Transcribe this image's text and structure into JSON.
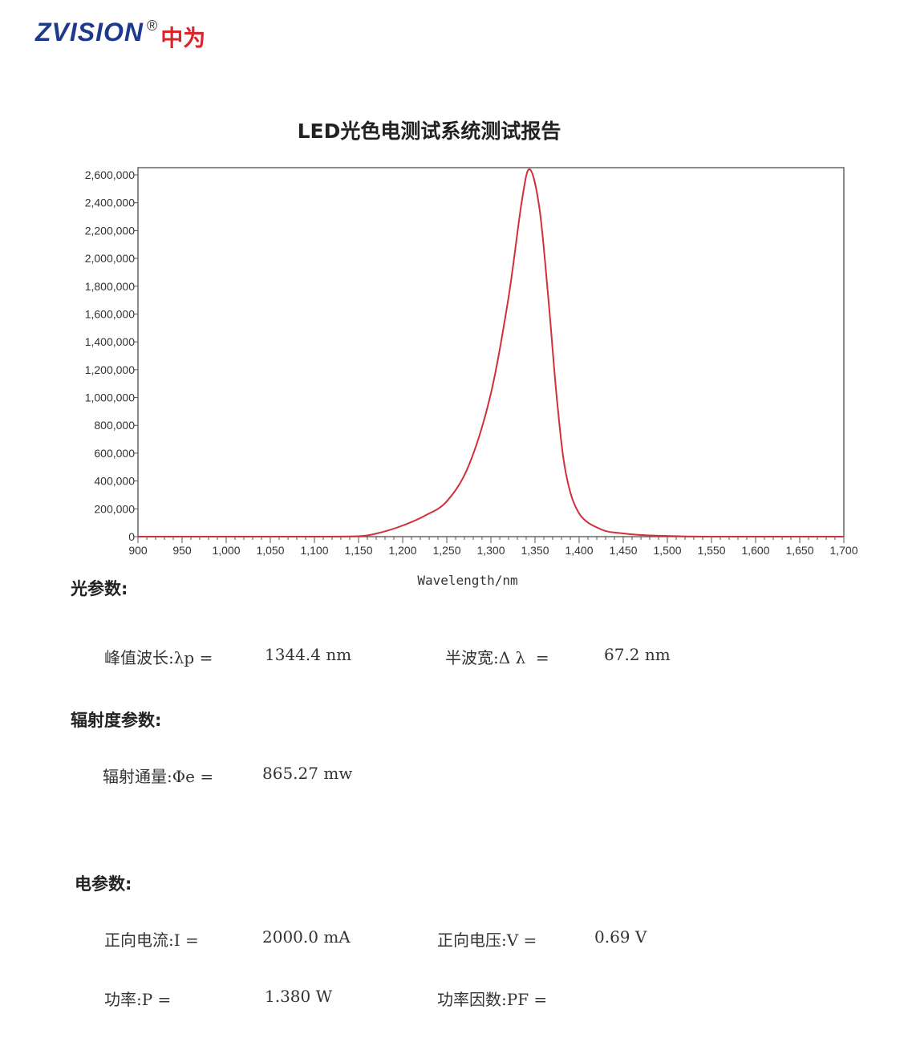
{
  "logo": {
    "en": "ZVISION",
    "reg": "®",
    "cn": "中为"
  },
  "title": "LED光色电测试系统测试报告",
  "chart_data": {
    "type": "line",
    "xlabel": "Wavelength/nm",
    "ylabel": "",
    "xlim": [
      900,
      1700
    ],
    "ylim": [
      0,
      2600000
    ],
    "xticks": [
      900,
      950,
      1000,
      1050,
      1100,
      1150,
      1200,
      1250,
      1300,
      1350,
      1400,
      1450,
      1500,
      1550,
      1600,
      1650,
      1700
    ],
    "xtick_labels": [
      "900",
      "950",
      "1,000",
      "1,050",
      "1,100",
      "1,150",
      "1,200",
      "1,250",
      "1,300",
      "1,350",
      "1,400",
      "1,450",
      "1,500",
      "1,550",
      "1,600",
      "1,650",
      "1,700"
    ],
    "yticks": [
      0,
      200000,
      400000,
      600000,
      800000,
      1000000,
      1200000,
      1400000,
      1600000,
      1800000,
      2000000,
      2200000,
      2400000,
      2600000
    ],
    "ytick_labels": [
      "0",
      "200,000",
      "400,000",
      "600,000",
      "800,000",
      "1,000,000",
      "1,200,000",
      "1,400,000",
      "1,600,000",
      "1,800,000",
      "2,000,000",
      "2,200,000",
      "2,400,000",
      "2,600,000"
    ],
    "grid": false,
    "series": [
      {
        "color": "#d0303a",
        "x": [
          900,
          1100,
          1150,
          1175,
          1200,
          1225,
          1250,
          1275,
          1300,
          1320,
          1335,
          1344,
          1355,
          1365,
          1375,
          1385,
          1400,
          1425,
          1450,
          1475,
          1500,
          1550,
          1700
        ],
        "y": [
          0,
          0,
          3000,
          30000,
          80000,
          150000,
          254000,
          513000,
          1030000,
          1720000,
          2410000,
          2640000,
          2360000,
          1720000,
          975000,
          455000,
          167000,
          52000,
          23000,
          10000,
          5000,
          0,
          0
        ]
      }
    ]
  },
  "sections": {
    "optical": {
      "heading": "光参数:",
      "peak_label": "峰值波长:λp =",
      "peak_value": "1344.4 nm",
      "fwhm_label": "半波宽:Δ λ  =",
      "fwhm_value": "67.2 nm"
    },
    "radiometric": {
      "heading": "辐射度参数:",
      "flux_label": "辐射通量:Φe =",
      "flux_value": "865.27 mw"
    },
    "electrical": {
      "heading": "电参数:",
      "current_label": "正向电流:I =",
      "current_value": "2000.0 mA",
      "voltage_label": "正向电压:V =",
      "voltage_value": "0.69 V",
      "power_label": "功率:P =",
      "power_value": "1.380 W",
      "pf_label": "功率因数:PF =",
      "pf_value": ""
    }
  }
}
